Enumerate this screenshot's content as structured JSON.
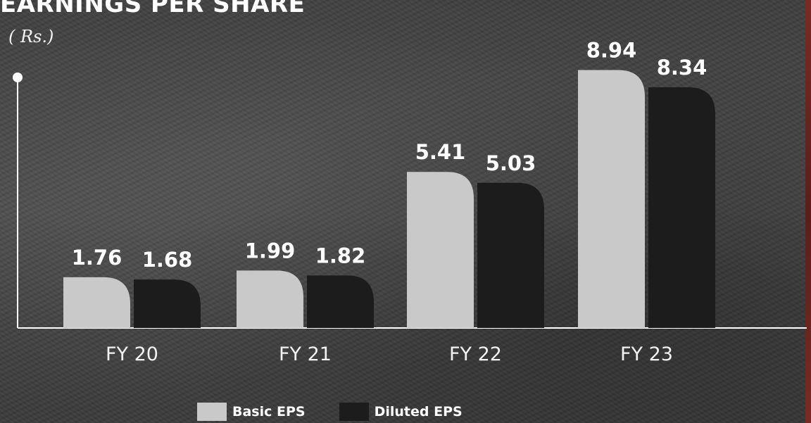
{
  "chart_data": {
    "type": "bar",
    "title": "EARNINGS PER SHARE",
    "unit": "( Rs.)",
    "categories": [
      "FY 20",
      "FY 21",
      "FY 22",
      "FY 23"
    ],
    "series": [
      {
        "name": "Basic EPS",
        "values": [
          1.76,
          1.99,
          5.41,
          8.94
        ],
        "color": "#c9c9c9",
        "labels": [
          "1.76",
          "1.99",
          "5.41",
          "8.94"
        ]
      },
      {
        "name": "Diluted EPS",
        "values": [
          1.68,
          1.82,
          5.03,
          8.34
        ],
        "color": "#1c1c1c",
        "labels": [
          "1.68",
          "1.82",
          "5.03",
          "8.34"
        ]
      }
    ],
    "ylim": [
      0,
      10
    ],
    "grid": false,
    "legend_position": "bottom"
  }
}
